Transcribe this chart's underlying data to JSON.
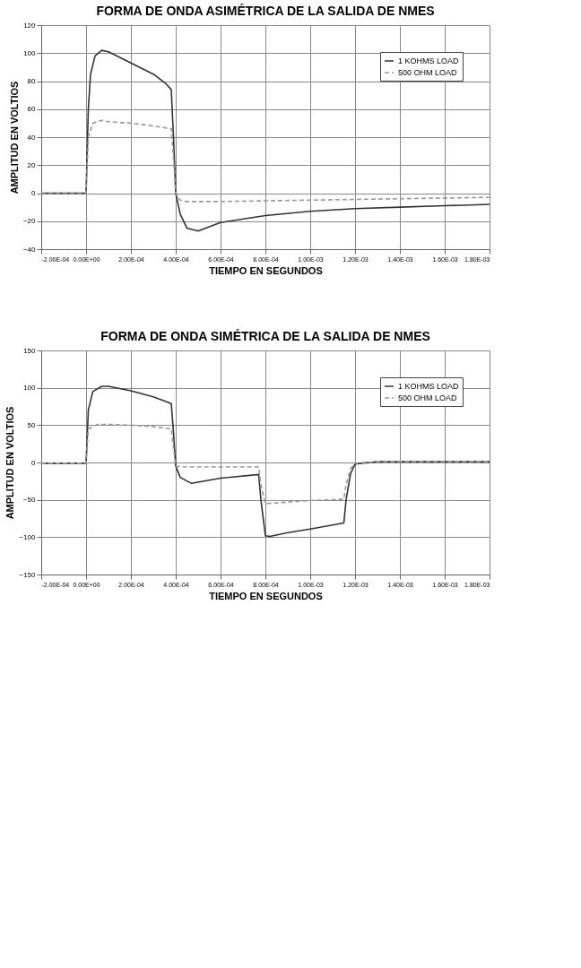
{
  "chart_data": [
    {
      "type": "line",
      "title": "FORMA DE ONDA ASIMÉTRICA DE LA SALIDA DE NMES",
      "xlabel": "TIEMPO EN SEGUNDOS",
      "ylabel": "AMPLITUD EN VOLTIOS",
      "xlim": [
        -0.0002,
        0.0018
      ],
      "xticks": [
        {
          "value": -0.0002,
          "label": "-2.00E-04"
        },
        {
          "value": 0,
          "label": "0.00E+00"
        },
        {
          "value": 0.0002,
          "label": "2.00E-04"
        },
        {
          "value": 0.0004,
          "label": "4.00E-04"
        },
        {
          "value": 0.0006,
          "label": "6.00E-04"
        },
        {
          "value": 0.0008,
          "label": "8.00E-04"
        },
        {
          "value": 0.001,
          "label": "1.00E-03"
        },
        {
          "value": 0.0012,
          "label": "1.20E-03"
        },
        {
          "value": 0.0014,
          "label": "1.40E-03"
        },
        {
          "value": 0.0016,
          "label": "1.60E-03"
        },
        {
          "value": 0.0018,
          "label": "1.80E-03"
        }
      ],
      "ylim": [
        -40,
        120
      ],
      "yticks": [
        -40,
        -20,
        0,
        20,
        40,
        60,
        80,
        100,
        120
      ],
      "grid": true,
      "legend": "top right",
      "series": [
        {
          "name": "1 KOHMS LOAD",
          "color": "#333333",
          "line_style": "solid",
          "x": [
            -0.0002,
            0,
            1e-05,
            2e-05,
            4e-05,
            7e-05,
            0.0001,
            0.00015,
            0.0002,
            0.00025,
            0.0003,
            0.00035,
            0.00038,
            0.00039,
            0.0004,
            0.00042,
            0.00045,
            0.0005,
            0.0006,
            0.0008,
            0.001,
            0.0012,
            0.0014,
            0.0016,
            0.0018
          ],
          "values": [
            0,
            0,
            60,
            85,
            98,
            102,
            101,
            97,
            93,
            89,
            85,
            79,
            74,
            40,
            0,
            -15,
            -25,
            -27,
            -21,
            -16,
            -13,
            -11,
            -10,
            -9,
            -8
          ]
        },
        {
          "name": "500 OHM LOAD",
          "color": "#999999",
          "line_style": "dashed",
          "x": [
            -0.0002,
            0,
            1e-05,
            3e-05,
            7e-05,
            0.0001,
            0.0002,
            0.0003,
            0.00038,
            0.00039,
            0.0004,
            0.00042,
            0.00045,
            0.0006,
            0.001,
            0.0014,
            0.0018
          ],
          "values": [
            0,
            0,
            40,
            50,
            52,
            51,
            50,
            48,
            46,
            25,
            0,
            -5,
            -6,
            -6,
            -5,
            -4,
            -3
          ]
        }
      ]
    },
    {
      "type": "line",
      "title": "FORMA DE ONDA SIMÉTRICA DE LA SALIDA DE NMES",
      "xlabel": "TIEMPO EN SEGUNDOS",
      "ylabel": "AMPLITUD EN VOLTIOS",
      "xlim": [
        -0.0002,
        0.0018
      ],
      "xticks": [
        {
          "value": -0.0002,
          "label": "-2.00E-04"
        },
        {
          "value": 0,
          "label": "0.00E+00"
        },
        {
          "value": 0.0002,
          "label": "2.00E-04"
        },
        {
          "value": 0.0004,
          "label": "4.00E-04"
        },
        {
          "value": 0.0006,
          "label": "6.00E-04"
        },
        {
          "value": 0.0008,
          "label": "8.00E-04"
        },
        {
          "value": 0.001,
          "label": "1.00E-03"
        },
        {
          "value": 0.0012,
          "label": "1.20E-03"
        },
        {
          "value": 0.0014,
          "label": "1.40E-03"
        },
        {
          "value": 0.0016,
          "label": "1.60E-03"
        },
        {
          "value": 0.0018,
          "label": "1.80E-03"
        }
      ],
      "ylim": [
        -150,
        150
      ],
      "yticks": [
        -150,
        -100,
        -50,
        0,
        50,
        100,
        150
      ],
      "grid": true,
      "legend": "top right",
      "series": [
        {
          "name": "1 KOHMS LOAD",
          "color": "#333333",
          "line_style": "solid",
          "x": [
            -0.0002,
            0,
            1e-05,
            3e-05,
            7e-05,
            0.0001,
            0.0002,
            0.0003,
            0.00038,
            0.00039,
            0.0004,
            0.00042,
            0.00047,
            0.0006,
            0.00077,
            0.00078,
            0.0008,
            0.00082,
            0.0009,
            0.001,
            0.00115,
            0.00116,
            0.00118,
            0.0012,
            0.0013,
            0.0018
          ],
          "values": [
            -1,
            -1,
            70,
            95,
            102,
            102,
            96,
            88,
            79,
            40,
            -5,
            -20,
            -28,
            -21,
            -16,
            -50,
            -98,
            -99,
            -94,
            -89,
            -81,
            -50,
            -15,
            -2,
            1,
            1
          ]
        },
        {
          "name": "500 OHM LOAD",
          "color": "#999999",
          "line_style": "dashed",
          "x": [
            -0.0002,
            0,
            1e-05,
            5e-05,
            0.0001,
            0.0002,
            0.0003,
            0.00038,
            0.00039,
            0.0004,
            0.00045,
            0.0006,
            0.00077,
            0.00078,
            0.0008,
            0.0009,
            0.001,
            0.00115,
            0.00116,
            0.00118,
            0.0012,
            0.0013,
            0.0018
          ],
          "values": [
            -1,
            -1,
            45,
            51,
            51,
            50,
            48,
            45,
            20,
            -5,
            -6,
            -6,
            -6,
            -30,
            -55,
            -53,
            -51,
            -49,
            -30,
            -8,
            -1,
            1,
            1
          ]
        }
      ]
    }
  ]
}
